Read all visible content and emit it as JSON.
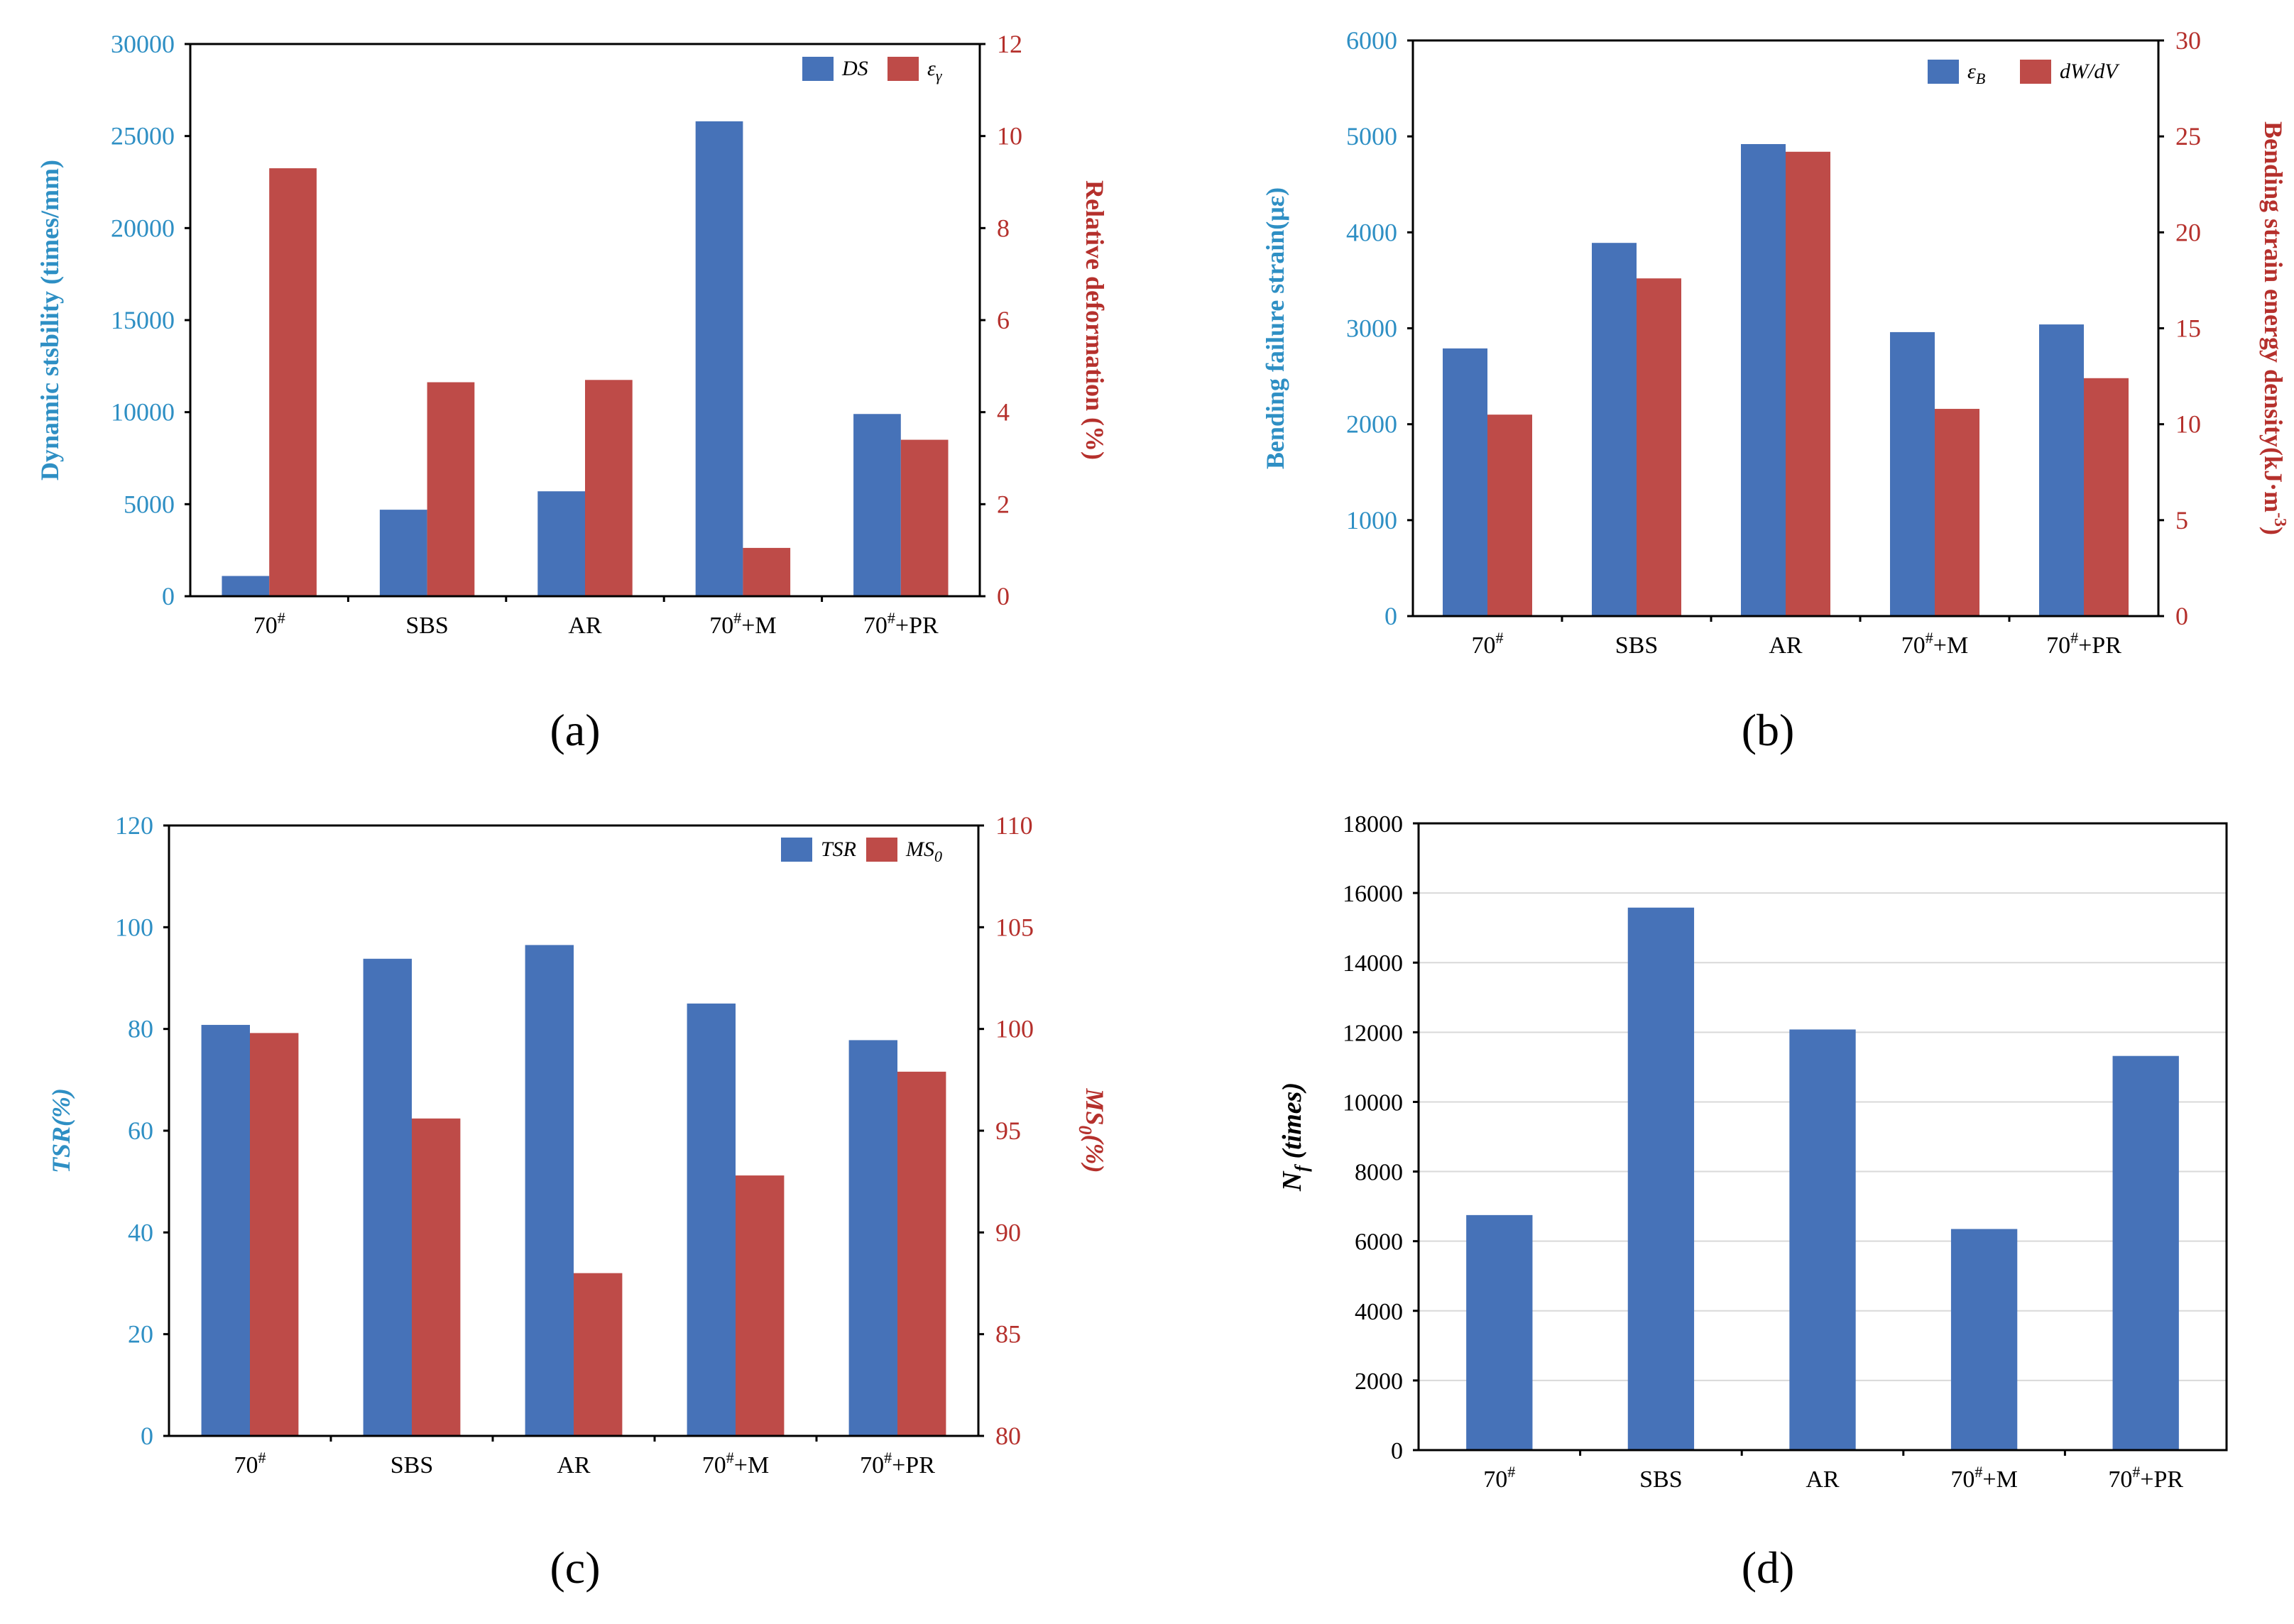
{
  "colors": {
    "blue": "#4672B8",
    "red": "#BE4B48",
    "left_axis": "#2E8FC4",
    "right_axis": "#B5302C",
    "dark": "#000000",
    "grid": "#D9D9D9"
  },
  "chart_data": [
    {
      "panel": "(a)",
      "type": "bar",
      "categories": [
        "70",
        "SBS",
        "AR",
        "70",
        "70"
      ],
      "category_sup": [
        "#",
        "",
        "",
        "#",
        "#"
      ],
      "category_suffix": [
        "",
        "",
        "",
        "+M",
        "+PR"
      ],
      "series": [
        {
          "name": "DS",
          "name_sub": "",
          "axis": "left",
          "values": [
            1100,
            4700,
            5700,
            25800,
            9900
          ]
        },
        {
          "name": "ε",
          "name_sub": "γ",
          "axis": "right",
          "values": [
            9.3,
            4.65,
            4.7,
            1.05,
            3.4
          ]
        }
      ],
      "ylabel": "Dynamic stsbility (times/mm)",
      "ylabel_sub": "",
      "ylabel_tail": "",
      "ylim": [
        0,
        30000
      ],
      "yticks": [
        0,
        5000,
        10000,
        15000,
        20000,
        25000,
        30000
      ],
      "y2label": "Relative deformation (%)",
      "y2label_sub": "",
      "y2label_tail": "",
      "y2lim": [
        0,
        12
      ],
      "y2ticks": [
        0,
        2,
        4,
        6,
        8,
        10,
        12
      ],
      "grid": false,
      "legend": "top-right"
    },
    {
      "panel": "(b)",
      "type": "bar",
      "categories": [
        "70",
        "SBS",
        "AR",
        "70",
        "70"
      ],
      "category_sup": [
        "#",
        "",
        "",
        "#",
        "#"
      ],
      "category_suffix": [
        "",
        "",
        "",
        "+M",
        "+PR"
      ],
      "series": [
        {
          "name": "ε",
          "name_sub": "B",
          "axis": "left",
          "values": [
            2790,
            3890,
            4920,
            2960,
            3040
          ]
        },
        {
          "name": "dW/dV",
          "name_sub": "",
          "axis": "right",
          "values": [
            10.5,
            17.6,
            24.2,
            10.8,
            12.4
          ]
        }
      ],
      "ylabel": "Bending failure strain(με)",
      "ylabel_sub": "",
      "ylabel_tail": "",
      "ylim": [
        0,
        6000
      ],
      "yticks": [
        0,
        1000,
        2000,
        3000,
        4000,
        5000,
        6000
      ],
      "y2label": "Bending strain energy density(kJ·m",
      "y2label_sub": "",
      "y2label_sup": "-3",
      "y2label_tail": ")",
      "y2lim": [
        0,
        30
      ],
      "y2ticks": [
        0,
        5,
        10,
        15,
        20,
        25,
        30
      ],
      "grid": false,
      "legend": "top-right"
    },
    {
      "panel": "(c)",
      "type": "bar",
      "categories": [
        "70",
        "SBS",
        "AR",
        "70",
        "70"
      ],
      "category_sup": [
        "#",
        "",
        "",
        "#",
        "#"
      ],
      "category_suffix": [
        "",
        "",
        "",
        "+M",
        "+PR"
      ],
      "series": [
        {
          "name": "TSR",
          "name_sub": "",
          "axis": "left",
          "values": [
            80.8,
            93.8,
            96.5,
            85.0,
            77.8
          ]
        },
        {
          "name": "MS",
          "name_sub": "0",
          "axis": "right",
          "values": [
            99.8,
            95.6,
            88.0,
            92.8,
            97.9
          ]
        }
      ],
      "ylabel": "TSR(%)",
      "ylabel_sub": "",
      "ylabel_tail": "",
      "ylim": [
        0,
        120
      ],
      "yticks": [
        0,
        20,
        40,
        60,
        80,
        100,
        120
      ],
      "y2label": "MS",
      "y2label_sub": "0",
      "y2label_tail": "(%)",
      "y2lim": [
        80,
        110
      ],
      "y2ticks": [
        80,
        85,
        90,
        95,
        100,
        105,
        110
      ],
      "grid": false,
      "legend": "top-right"
    },
    {
      "panel": "(d)",
      "type": "bar",
      "categories": [
        "70",
        "SBS",
        "AR",
        "70",
        "70"
      ],
      "category_sup": [
        "#",
        "",
        "",
        "#",
        "#"
      ],
      "category_suffix": [
        "",
        "",
        "",
        "+M",
        "+PR"
      ],
      "series": [
        {
          "name": "N_f",
          "axis": "left",
          "values": [
            6750,
            15580,
            12080,
            6350,
            11320
          ]
        }
      ],
      "ylabel": "N",
      "ylabel_sub": "f",
      "ylabel_tail": " (times)",
      "ylim": [
        0,
        18000
      ],
      "yticks": [
        0,
        2000,
        4000,
        6000,
        8000,
        10000,
        12000,
        14000,
        16000,
        18000
      ],
      "grid": true,
      "legend": "none"
    }
  ]
}
